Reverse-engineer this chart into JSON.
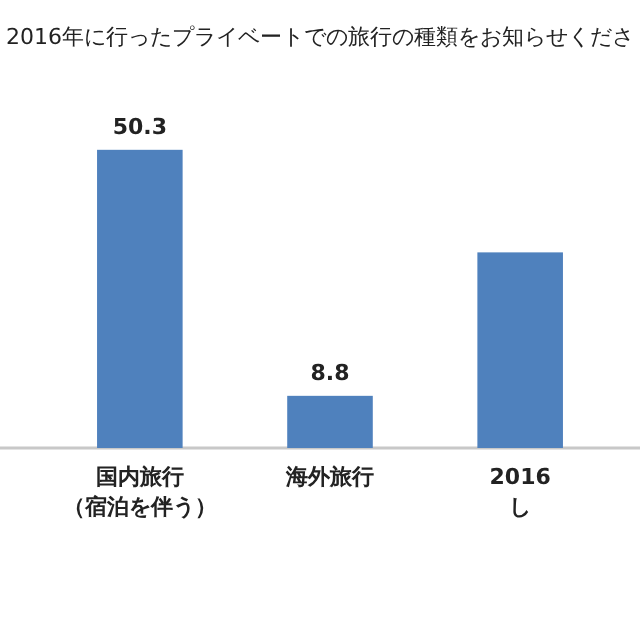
{
  "chart_data": {
    "type": "bar",
    "title": "2016年に行ったプライベートでの旅行の種類をお知らせくださ",
    "categories": [
      "国内旅行（宿泊を伴う）",
      "海外旅行",
      "2016し"
    ],
    "values": [
      50.3,
      8.8,
      33
    ],
    "color": "#4f81bd",
    "value_labels": [
      "50.3",
      "8.8",
      null
    ]
  }
}
